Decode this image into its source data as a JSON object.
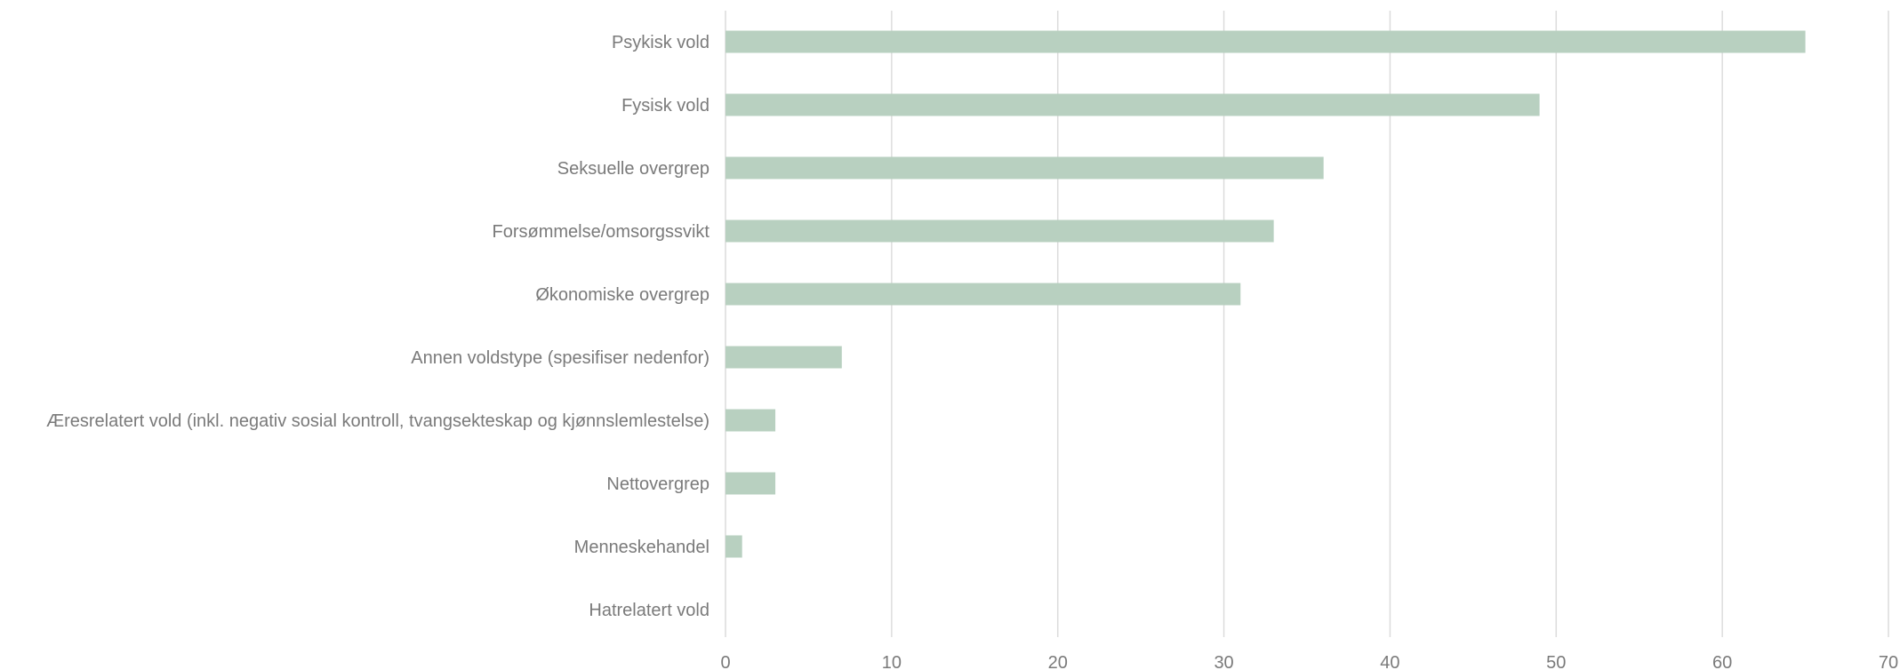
{
  "chart_data": {
    "type": "bar",
    "orientation": "horizontal",
    "categories": [
      "Psykisk vold",
      "Fysisk vold",
      "Seksuelle overgrep",
      "Forsømmelse/omsorgssvikt",
      "Økonomiske overgrep",
      "Annen voldstype (spesifiser nedenfor)",
      "Æresrelatert vold (inkl. negativ sosial kontroll, tvangsekteskap og kjønnslemlestelse)",
      "Nettovergrep",
      "Menneskehandel",
      "Hatrelatert vold"
    ],
    "values": [
      65,
      49,
      36,
      33,
      31,
      7,
      3,
      3,
      1,
      0
    ],
    "xlim": [
      0,
      70
    ],
    "xticks": [
      0,
      10,
      20,
      30,
      40,
      50,
      60,
      70
    ],
    "grid": true,
    "title": "",
    "xlabel": "",
    "ylabel": "",
    "colors": {
      "bar": "#b8d0c0",
      "grid": "#dcdcdc",
      "text": "#7a7a7a"
    }
  }
}
